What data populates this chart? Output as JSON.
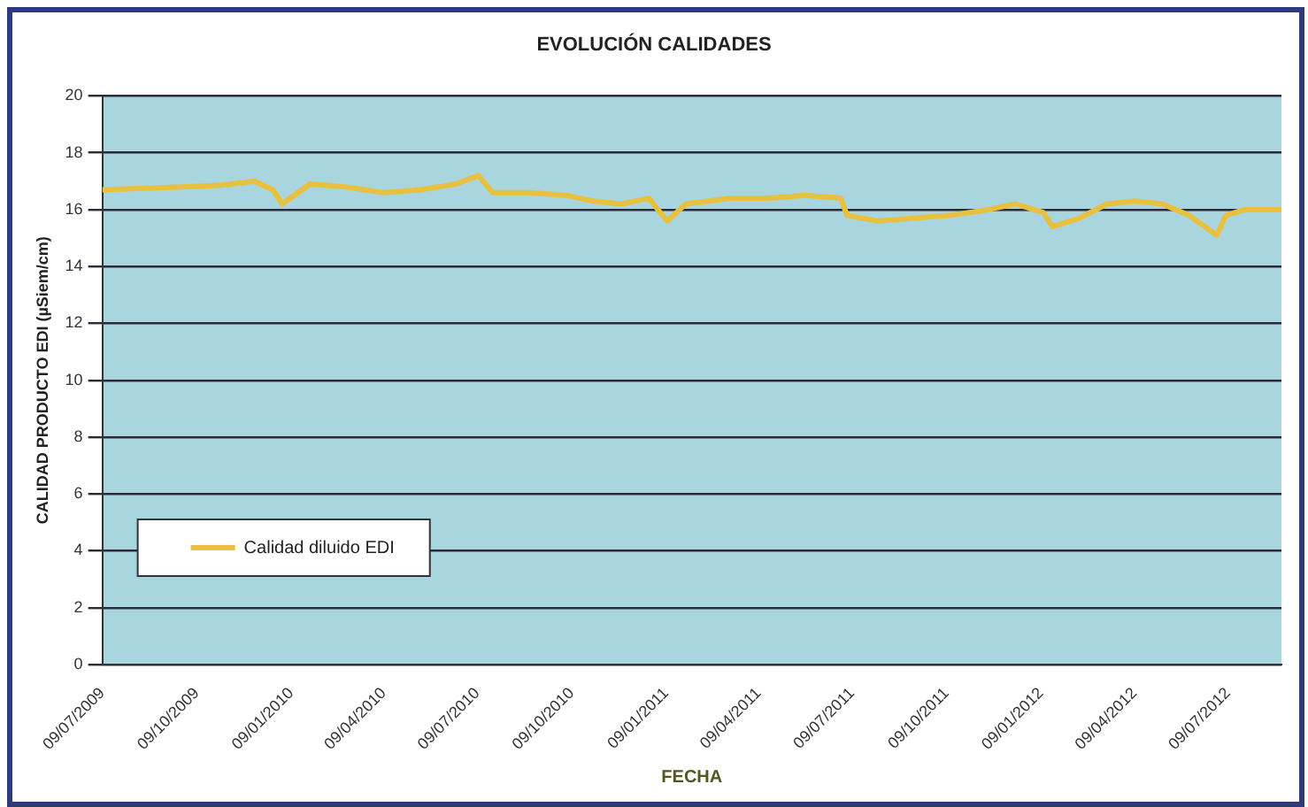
{
  "chart_data": {
    "type": "line",
    "title": "EVOLUCIÓN CALIDADES",
    "xlabel": "FECHA",
    "ylabel": "CALIDAD PRODUCTO EDI (µSiem/cm)",
    "x": [
      "2009-07-09",
      "2009-08-19",
      "2009-09-24",
      "2009-10-29",
      "2009-12-04",
      "2009-12-22",
      "2009-12-31",
      "2010-01-27",
      "2010-03-03",
      "2010-04-08",
      "2010-05-14",
      "2010-06-18",
      "2010-07-10",
      "2010-07-24",
      "2010-08-29",
      "2010-10-04",
      "2010-10-30",
      "2010-11-26",
      "2010-12-23",
      "2011-01-10",
      "2011-01-28",
      "2011-03-13",
      "2011-04-18",
      "2011-05-24",
      "2011-06-28",
      "2011-07-04",
      "2011-08-03",
      "2011-09-08",
      "2011-10-13",
      "2011-11-18",
      "2011-12-15",
      "2012-01-11",
      "2012-01-20",
      "2012-02-15",
      "2012-03-13",
      "2012-04-09",
      "2012-05-06",
      "2012-06-01",
      "2012-06-28",
      "2012-07-07",
      "2012-07-25",
      "2012-08-30"
    ],
    "series": [
      {
        "name": "Calidad diluido EDI",
        "color": "#e8c040",
        "values": [
          16.7,
          16.75,
          16.8,
          16.85,
          17.0,
          16.7,
          16.2,
          16.9,
          16.8,
          16.6,
          16.7,
          16.9,
          17.2,
          16.6,
          16.6,
          16.5,
          16.3,
          16.2,
          16.4,
          15.6,
          16.2,
          16.4,
          16.4,
          16.5,
          16.4,
          15.8,
          15.6,
          15.7,
          15.8,
          16.0,
          16.2,
          15.9,
          15.4,
          15.7,
          16.2,
          16.3,
          16.2,
          15.8,
          15.1,
          15.8,
          16.0,
          16.0
        ]
      }
    ],
    "xlim": [
      "2009-07-09",
      "2012-08-30"
    ],
    "xticks": [
      {
        "value": "2009-07-09",
        "label": "09/07/2009"
      },
      {
        "value": "2009-10-09",
        "label": "09/10/2009"
      },
      {
        "value": "2010-01-09",
        "label": "09/01/2010"
      },
      {
        "value": "2010-04-09",
        "label": "09/04/2010"
      },
      {
        "value": "2010-07-09",
        "label": "09/07/2010"
      },
      {
        "value": "2010-10-09",
        "label": "09/10/2010"
      },
      {
        "value": "2011-01-09",
        "label": "09/01/2011"
      },
      {
        "value": "2011-04-09",
        "label": "09/04/2011"
      },
      {
        "value": "2011-07-09",
        "label": "09/07/2011"
      },
      {
        "value": "2011-10-09",
        "label": "09/10/2011"
      },
      {
        "value": "2012-01-09",
        "label": "09/01/2012"
      },
      {
        "value": "2012-04-09",
        "label": "09/04/2012"
      },
      {
        "value": "2012-07-09",
        "label": "09/07/2012"
      }
    ],
    "ylim": [
      0,
      20
    ],
    "yticks": [
      0,
      2,
      4,
      6,
      8,
      10,
      12,
      14,
      16,
      18,
      20
    ],
    "grid": "y",
    "legend": "bottom left",
    "marker": "none",
    "line_style": "solid"
  }
}
